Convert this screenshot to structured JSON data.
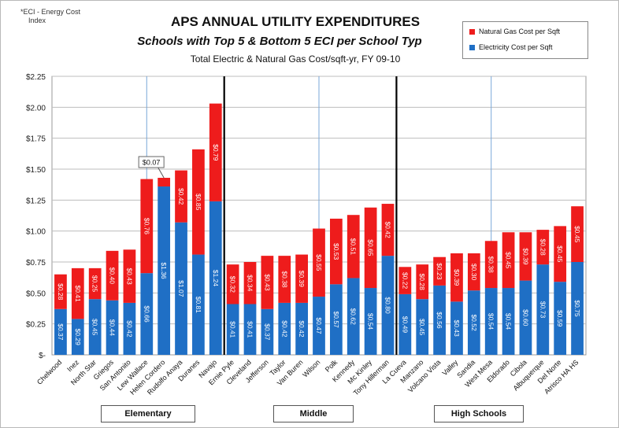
{
  "note": [
    "*ECI - Energy Cost",
    "Index"
  ],
  "title": "APS ANNUAL UTILITY EXPENDITURES",
  "subtitle": "Schools with Top 5 & Bottom 5 ECI per School Typ",
  "subtitle2": "Total Electric & Natural Gas Cost/sqft-yr, FY 09-10",
  "legend": [
    {
      "label": "Natural Gas Cost per Sqft",
      "color": "#ee1c1c"
    },
    {
      "label": "Electricity Cost per Sqft",
      "color": "#1f6fc5"
    }
  ],
  "groups": [
    "Elementary",
    "Middle",
    "High Schools"
  ],
  "callout": "$0.07",
  "chart_data": {
    "type": "bar",
    "stacked": true,
    "ylim": [
      0,
      2.25
    ],
    "yticks": [
      "$-",
      "$0.25",
      "$0.50",
      "$0.75",
      "$1.00",
      "$1.25",
      "$1.50",
      "$1.75",
      "$2.00",
      "$2.25"
    ],
    "categories": [
      "Chelwood",
      "Inez",
      "North Star",
      "Griegos",
      "San Antonito",
      "Lew Wallace",
      "Helen Cordero",
      "Rudolfo Anaya",
      "Duranes",
      "Navajo",
      "Ernie Pyle",
      "Cleveland",
      "Jefferson",
      "Taylor",
      "Van Buren",
      "Wilson",
      "Polk",
      "Kennedy",
      "Mc Kinley",
      "Tony Hillerman",
      "La Cueva",
      "Manzano",
      "Volcano Vista",
      "Valley",
      "Sandia",
      "West Mesa",
      "Eldorado",
      "Cibola",
      "Albuquerque",
      "Del Norte",
      "Atrisco HA HS"
    ],
    "series": [
      {
        "name": "Electricity Cost per Sqft",
        "color": "#1f6fc5",
        "values": [
          0.37,
          0.29,
          0.45,
          0.44,
          0.42,
          0.66,
          1.36,
          1.07,
          0.81,
          1.24,
          0.41,
          0.41,
          0.37,
          0.42,
          0.42,
          0.47,
          0.57,
          0.62,
          0.54,
          0.8,
          0.49,
          0.45,
          0.56,
          0.43,
          0.52,
          0.54,
          0.54,
          0.6,
          0.73,
          0.59,
          0.75
        ],
        "labels": [
          "$0.37",
          "$0.29",
          "$0.45",
          "$0.44",
          "$0.42",
          "$0.66",
          "$1.36",
          "$1.07",
          "$0.81",
          "$1.24",
          "$0.41",
          "$0.41",
          "$0.37",
          "$0.42",
          "$0.42",
          "$0.47",
          "$0.57",
          "$0.62",
          "$0.54",
          "$0.80",
          "$0.49",
          "$0.45",
          "$0.56",
          "$0.43",
          "$0.52",
          "$0.54",
          "$0.54",
          "$0.60",
          "$0.73",
          "$0.59",
          "$0.75"
        ]
      },
      {
        "name": "Natural Gas Cost per Sqft",
        "color": "#ee1c1c",
        "values": [
          0.28,
          0.41,
          0.25,
          0.4,
          0.43,
          0.76,
          0.07,
          0.42,
          0.85,
          0.79,
          0.32,
          0.34,
          0.43,
          0.38,
          0.39,
          0.55,
          0.53,
          0.51,
          0.65,
          0.42,
          0.22,
          0.28,
          0.23,
          0.39,
          0.3,
          0.38,
          0.45,
          0.39,
          0.28,
          0.45,
          0.45
        ],
        "labels": [
          "$0.28",
          "$0.41",
          "$0.25",
          "$0.40",
          "$0.43",
          "$0.76",
          "",
          "$0.42",
          "$0.85",
          "$0.79",
          "$0.32",
          "$0.34",
          "$0.43",
          "$0.38",
          "$0.39",
          "$0.55",
          "$0.53",
          "$0.51",
          "$0.65",
          "$0.42",
          "$0.22",
          "$0.28",
          "$0.23",
          "$0.39",
          "$0.30",
          "$0.38",
          "$0.45",
          "$0.39",
          "$0.28",
          "$0.45",
          "$0.45"
        ]
      }
    ]
  }
}
